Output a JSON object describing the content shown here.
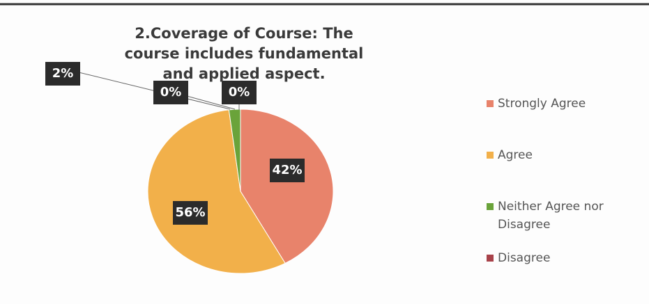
{
  "chart_data": {
    "type": "pie",
    "title": "2.Coverage of Course: The course includes fundamental and applied aspect.",
    "categories": [
      "Strongly Agree",
      "Agree",
      "Neither Agree nor Disagree",
      "Disagree",
      null
    ],
    "values": [
      42,
      56,
      2,
      0,
      0
    ],
    "value_labels": [
      "42%",
      "56%",
      "2%",
      "0%",
      "0%"
    ],
    "colors": [
      "#e8836b",
      "#f2b04a",
      "#6aa33a",
      "#a8424a",
      "#7a5fa0"
    ],
    "legend": "right"
  }
}
